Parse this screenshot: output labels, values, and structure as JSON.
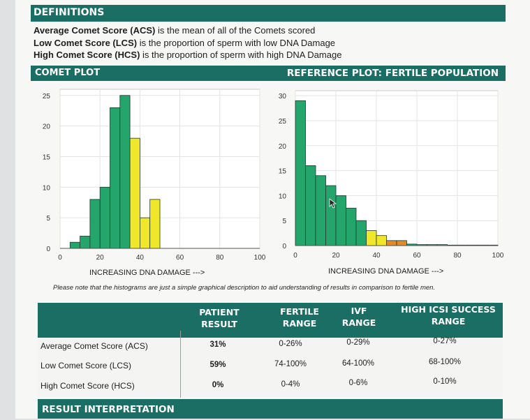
{
  "definitions": {
    "header": "DEFINITIONS",
    "lines": [
      {
        "term": "Average Comet Score (ACS)",
        "text": " is the mean of all of the Comets scored"
      },
      {
        "term": "Low Comet Score (LCS)",
        "text": " is the proportion of sperm with low DNA Damage"
      },
      {
        "term": "High Comet Score (HCS)",
        "text": " is the proportion of sperm with high DNA Damage"
      }
    ]
  },
  "plots_header": {
    "left": "COMET PLOT",
    "right": "REFERENCE PLOT: FERTILE POPULATION"
  },
  "colors": {
    "band": "#1b6e63",
    "green": "#23a56b",
    "yellow": "#f0e62a",
    "orange": "#e08a2c"
  },
  "chart_data": [
    {
      "type": "bar",
      "xlabel": "INCREASING DNA DAMAGE --->",
      "xlim": [
        0,
        100
      ],
      "ylim": [
        0,
        26
      ],
      "x_ticks": [
        0,
        20,
        40,
        60,
        80,
        100
      ],
      "y_ticks": [
        0,
        5,
        10,
        15,
        20,
        25
      ],
      "grid": true,
      "bin_width": 5,
      "bins": [
        {
          "start": 5,
          "value": 1,
          "color": "green"
        },
        {
          "start": 10,
          "value": 2,
          "color": "green"
        },
        {
          "start": 15,
          "value": 8,
          "color": "green"
        },
        {
          "start": 20,
          "value": 10,
          "color": "green"
        },
        {
          "start": 25,
          "value": 23,
          "color": "green"
        },
        {
          "start": 30,
          "value": 25,
          "color": "green"
        },
        {
          "start": 35,
          "value": 18,
          "color": "yellow"
        },
        {
          "start": 40,
          "value": 5,
          "color": "yellow"
        },
        {
          "start": 45,
          "value": 8,
          "color": "yellow"
        }
      ]
    },
    {
      "type": "bar",
      "xlabel": "INCREASING DNA DAMAGE --->",
      "xlim": [
        0,
        100
      ],
      "ylim": [
        0,
        31
      ],
      "x_ticks": [
        0,
        20,
        40,
        60,
        80,
        100
      ],
      "y_ticks": [
        0,
        5,
        10,
        15,
        20,
        25,
        30
      ],
      "grid": true,
      "bin_width": 5,
      "bins": [
        {
          "start": 0,
          "value": 29,
          "color": "green"
        },
        {
          "start": 5,
          "value": 16,
          "color": "green"
        },
        {
          "start": 10,
          "value": 14,
          "color": "green"
        },
        {
          "start": 15,
          "value": 12,
          "color": "green"
        },
        {
          "start": 20,
          "value": 10,
          "color": "green"
        },
        {
          "start": 25,
          "value": 7.5,
          "color": "green"
        },
        {
          "start": 30,
          "value": 5,
          "color": "green"
        },
        {
          "start": 35,
          "value": 3,
          "color": "yellow"
        },
        {
          "start": 40,
          "value": 2,
          "color": "yellow"
        },
        {
          "start": 45,
          "value": 1,
          "color": "orange"
        },
        {
          "start": 50,
          "value": 1,
          "color": "orange"
        },
        {
          "start": 55,
          "value": 0.3,
          "color": "green"
        },
        {
          "start": 60,
          "value": 0.2,
          "color": "green"
        },
        {
          "start": 65,
          "value": 0.2,
          "color": "green"
        },
        {
          "start": 70,
          "value": 0.2,
          "color": "green"
        },
        {
          "start": 75,
          "value": 0.1,
          "color": "green"
        },
        {
          "start": 80,
          "value": 0.1,
          "color": "green"
        },
        {
          "start": 85,
          "value": 0.1,
          "color": "green"
        },
        {
          "start": 90,
          "value": 0.1,
          "color": "green"
        },
        {
          "start": 95,
          "value": 0.1,
          "color": "green"
        }
      ]
    }
  ],
  "note": "Please note that the histograms are just a simple graphical description to aid understanding of results in comparison to fertile men.",
  "table": {
    "headers": [
      "PATIENT RESULT",
      "FERTILE RANGE",
      "IVF RANGE",
      "HIGH ICSI SUCCESS RANGE"
    ],
    "header_lines": [
      [
        "PATIENT",
        "RESULT"
      ],
      [
        "FERTILE",
        "RANGE"
      ],
      [
        "IVF",
        "RANGE"
      ],
      [
        "HIGH ICSI SUCCESS",
        "RANGE"
      ]
    ],
    "rows": [
      {
        "label": "Average Comet Score (ACS)",
        "values": [
          "31%",
          "0-26%",
          "0-29%",
          "0-27%"
        ]
      },
      {
        "label": "Low Comet Score (LCS)",
        "values": [
          "59%",
          "74-100%",
          "64-100%",
          "68-100%"
        ]
      },
      {
        "label": "High Comet Score (HCS)",
        "values": [
          "0%",
          "0-4%",
          "0-6%",
          "0-10%"
        ]
      }
    ]
  },
  "interpretation_header": "RESULT INTERPRETATION"
}
